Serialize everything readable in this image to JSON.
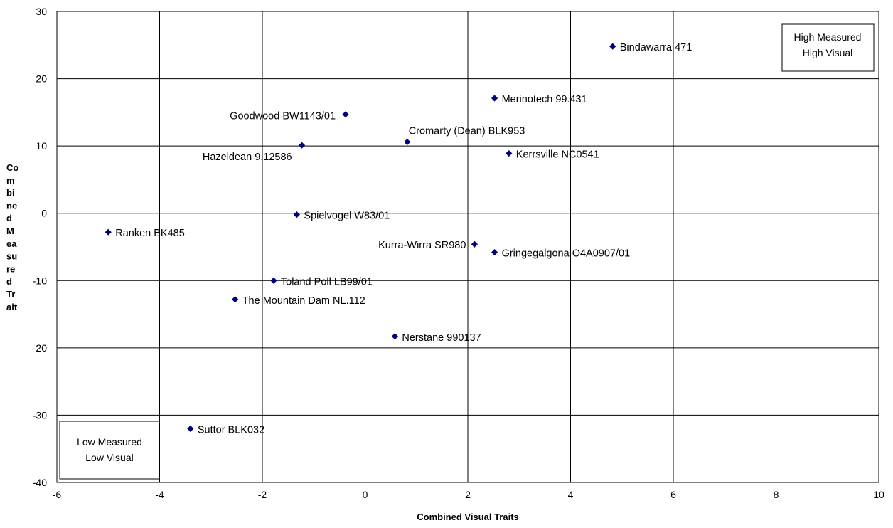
{
  "chart_data": {
    "type": "scatter",
    "xlabel": "Combined Visual Traits",
    "ylabel": "Combined Measured Trait",
    "ylabel_lines": [
      "Co",
      "m",
      "bi",
      "ne",
      "d",
      "M",
      "ea",
      "su",
      "re",
      "d",
      "Tr",
      "ait"
    ],
    "xlim": [
      -6,
      10
    ],
    "ylim": [
      -40,
      30
    ],
    "x_ticks": [
      -6,
      -4,
      -2,
      0,
      2,
      4,
      6,
      8,
      10
    ],
    "y_ticks": [
      -40,
      -30,
      -20,
      -10,
      0,
      10,
      20,
      30
    ],
    "grid": true,
    "marker_color": "#000080",
    "points": [
      {
        "label": "Bindawarra 471",
        "x": 4.82,
        "y": 24.8
      },
      {
        "label": "Merinotech 99.431",
        "x": 2.52,
        "y": 17.1
      },
      {
        "label": "Goodwood BW1143/01",
        "x": -0.38,
        "y": 14.7
      },
      {
        "label": "Cromarty (Dean) BLK953",
        "x": 0.82,
        "y": 10.6
      },
      {
        "label": "Hazeldean 9.12586",
        "x": -1.23,
        "y": 10.1
      },
      {
        "label": "Kerrsville NC0541",
        "x": 2.8,
        "y": 8.9
      },
      {
        "label": "Spielvogel W83/01",
        "x": -1.33,
        "y": -0.2
      },
      {
        "label": "Ranken BK485",
        "x": -5.0,
        "y": -2.8
      },
      {
        "label": "Kurra-Wirra  SR980",
        "x": 2.13,
        "y": -4.6
      },
      {
        "label": "Gringegalgona O4A0907/01",
        "x": 2.52,
        "y": -5.8
      },
      {
        "label": "Toland Poll LB99/01",
        "x": -1.78,
        "y": -10.0
      },
      {
        "label": "The Mountain Dam NL.112",
        "x": -2.53,
        "y": -12.8
      },
      {
        "label": "Nerstane 990137",
        "x": 0.58,
        "y": -18.3
      },
      {
        "label": "Suttor BLK032",
        "x": -3.4,
        "y": -32.0
      }
    ],
    "quadrant_boxes": [
      {
        "position": "top-right",
        "lines": [
          "High Measured",
          "High Visual"
        ]
      },
      {
        "position": "bottom-left",
        "lines": [
          "Low Measured",
          "Low Visual"
        ]
      }
    ]
  }
}
